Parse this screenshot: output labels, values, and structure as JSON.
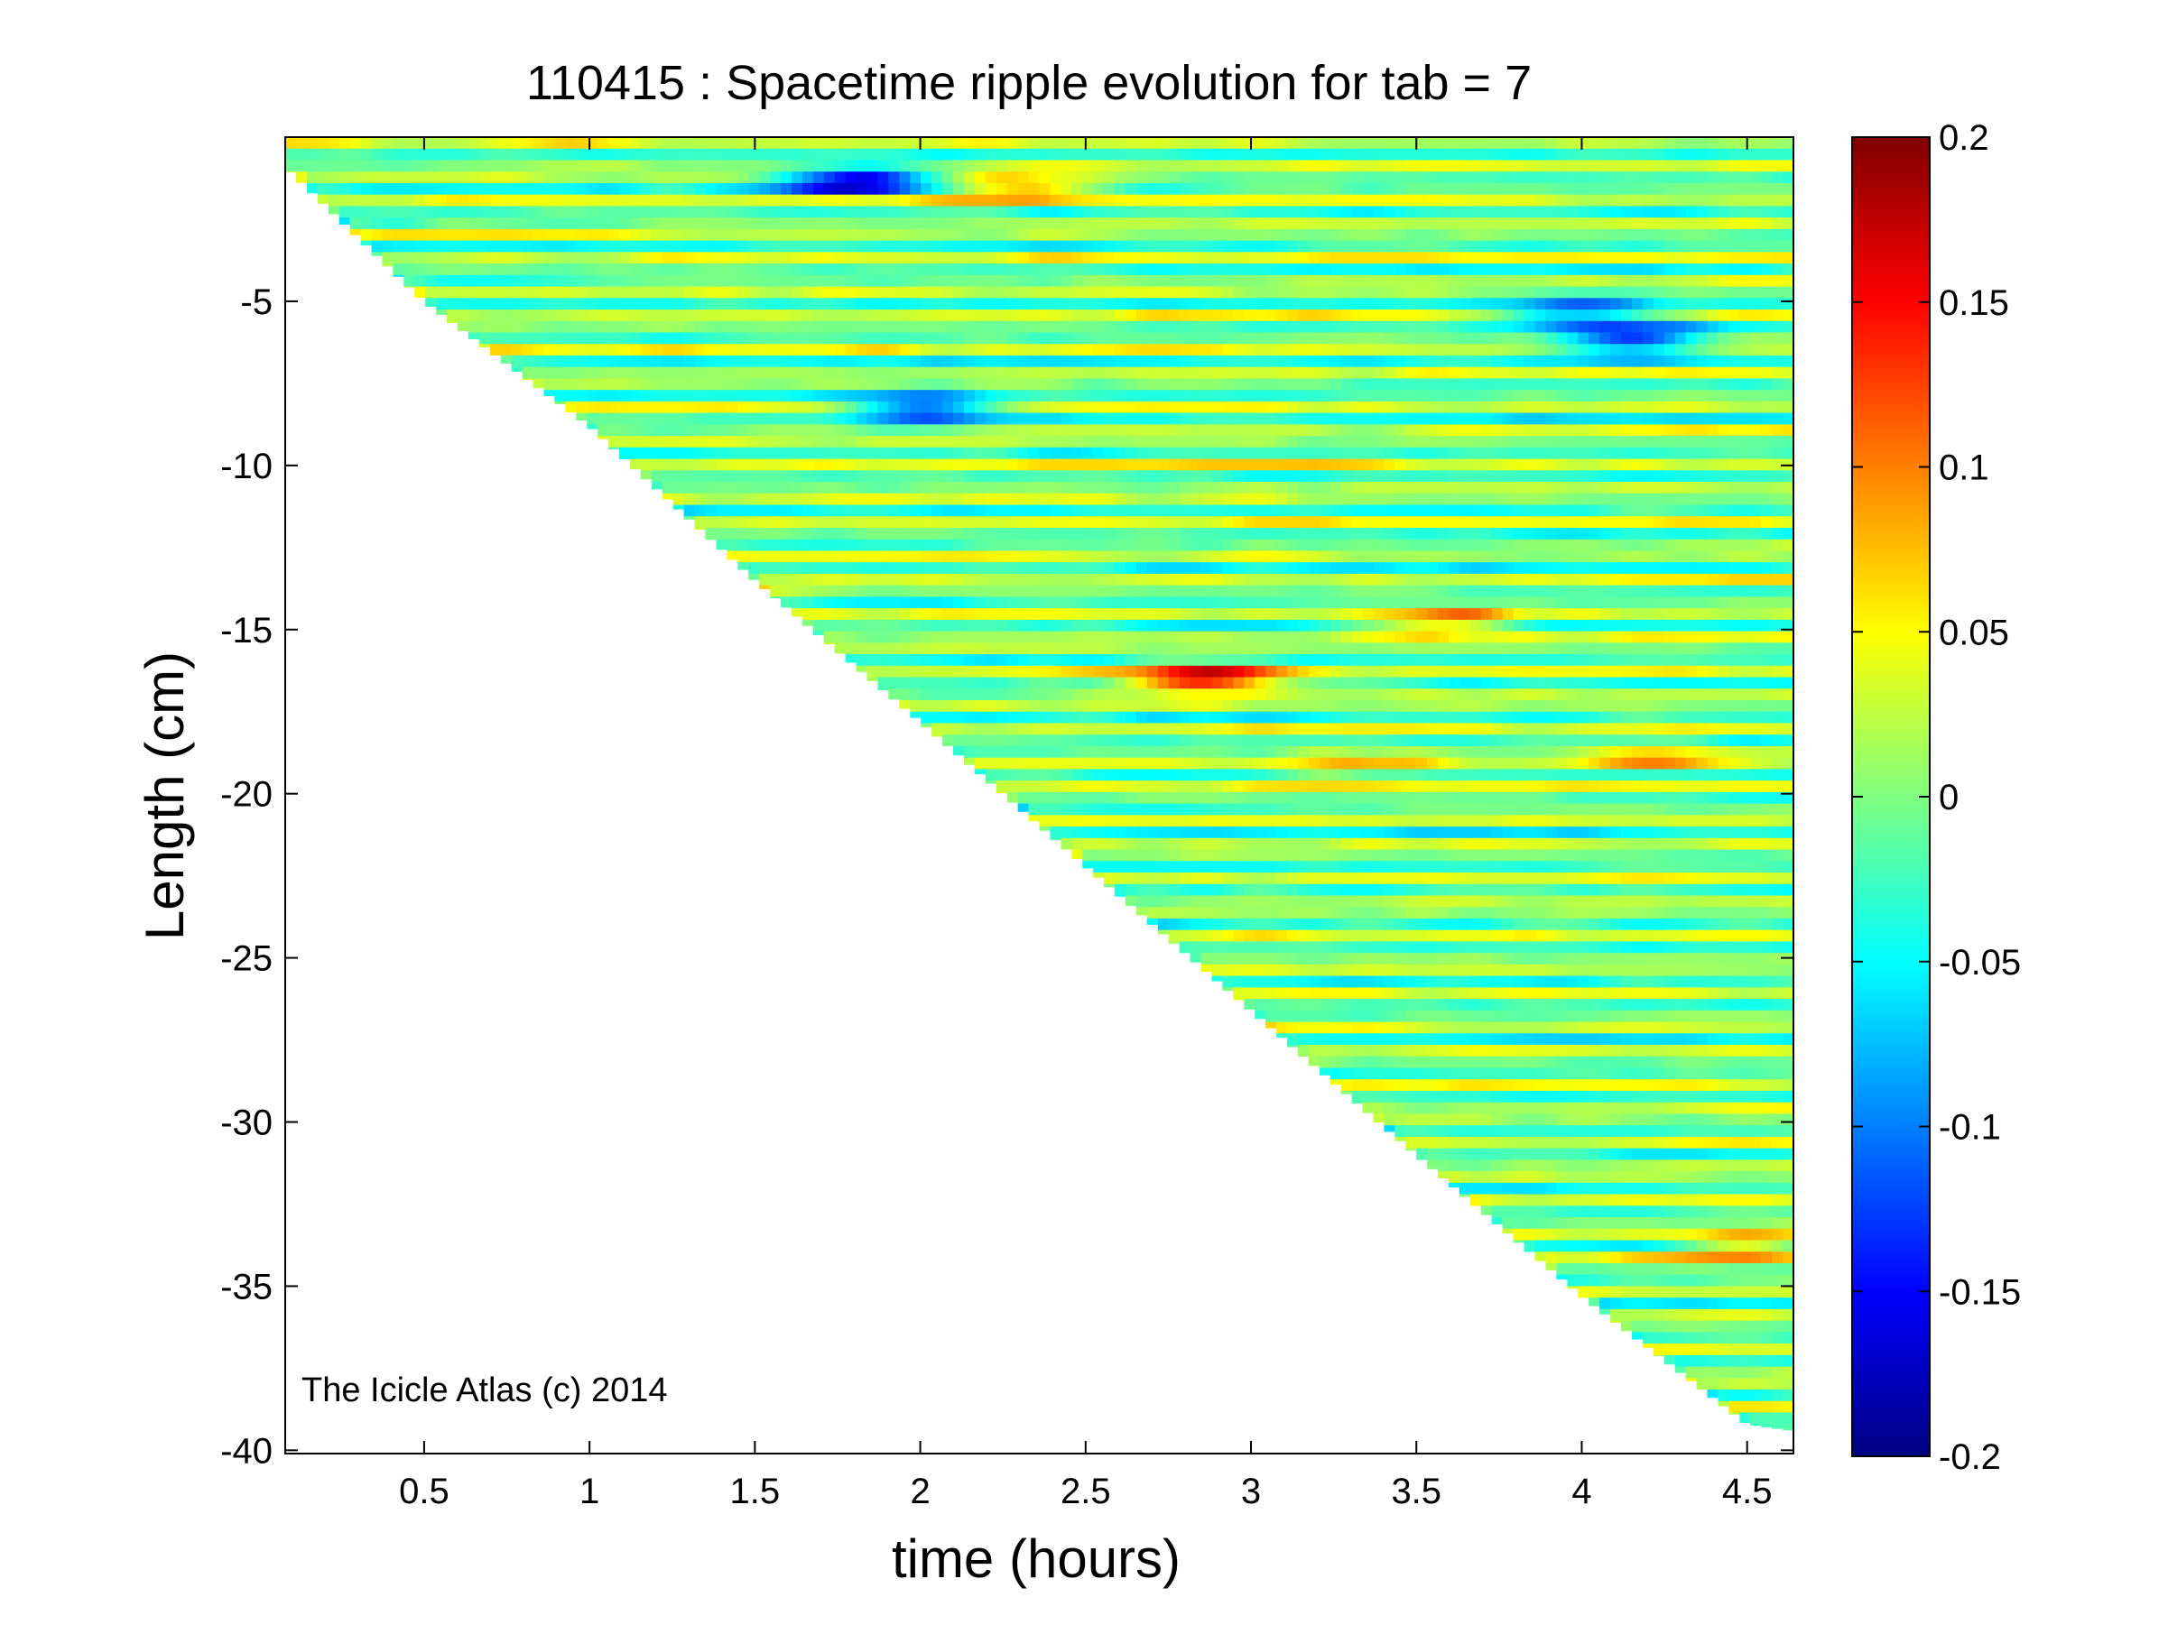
{
  "chart_data": {
    "type": "heatmap",
    "title": "110415 : Spacetime ripple evolution for tab = 7",
    "xlabel": "time (hours)",
    "ylabel": "Length (cm)",
    "xlim": [
      0.08,
      4.64
    ],
    "ylim": [
      -40.1,
      0.0
    ],
    "xticks": [
      0.5,
      1,
      1.5,
      2,
      2.5,
      3,
      3.5,
      4,
      4.5
    ],
    "xtick_labels": [
      "0.5",
      "1",
      "1.5",
      "2",
      "2.5",
      "3",
      "3.5",
      "4",
      "4.5"
    ],
    "yticks": [
      -5,
      -10,
      -15,
      -20,
      -25,
      -30,
      -35,
      -40
    ],
    "ytick_labels": [
      "-5",
      "-10",
      "-15",
      "-20",
      "-25",
      "-30",
      "-35",
      "-40"
    ],
    "colormap": "jet",
    "clim": [
      -0.2,
      0.2
    ],
    "colorbar_ticks": [
      0.2,
      0.15,
      0.1,
      0.05,
      0,
      -0.05,
      -0.1,
      -0.15,
      -0.2
    ],
    "colorbar_tick_labels": [
      "0.2",
      "0.15",
      "0.1",
      "0.05",
      "0",
      "-0.05",
      "-0.1",
      "-0.15",
      "-0.2"
    ],
    "data_boundary": {
      "description_units": "length reached at each time (cm); data exists between 0 and this length",
      "time": [
        0.08,
        0.5,
        1,
        1.5,
        2,
        2.5,
        3,
        3.5,
        4,
        4.5,
        4.64
      ],
      "min_length": [
        -0.9,
        -5.0,
        -8.8,
        -13.5,
        -17.8,
        -22.2,
        -26.6,
        -31.0,
        -35.3,
        -39.2,
        -39.4
      ]
    },
    "ripple_band_spacing_cm": 0.9,
    "value_range_typical": [
      -0.06,
      0.06
    ],
    "highlights": [
      {
        "time": 2.85,
        "length": -16.5,
        "value": 0.17
      },
      {
        "time": 1.8,
        "length": -1.3,
        "value": -0.17
      },
      {
        "time": 4.15,
        "length": -6.2,
        "value": -0.14
      },
      {
        "time": 2.3,
        "length": -1.5,
        "value": 0.09
      },
      {
        "time": 4.2,
        "length": -19.0,
        "value": 0.08
      },
      {
        "time": 2.0,
        "length": -8.3,
        "value": -0.13
      },
      {
        "time": 3.6,
        "length": -14.8,
        "value": 0.09
      },
      {
        "time": 4.0,
        "length": -5.3,
        "value": -0.12
      },
      {
        "time": 4.5,
        "length": -33.8,
        "value": 0.08
      },
      {
        "time": 3.3,
        "length": -19.2,
        "value": 0.08
      }
    ],
    "grid": false,
    "legend": "none"
  },
  "annotation": "The Icicle Atlas (c) 2014"
}
